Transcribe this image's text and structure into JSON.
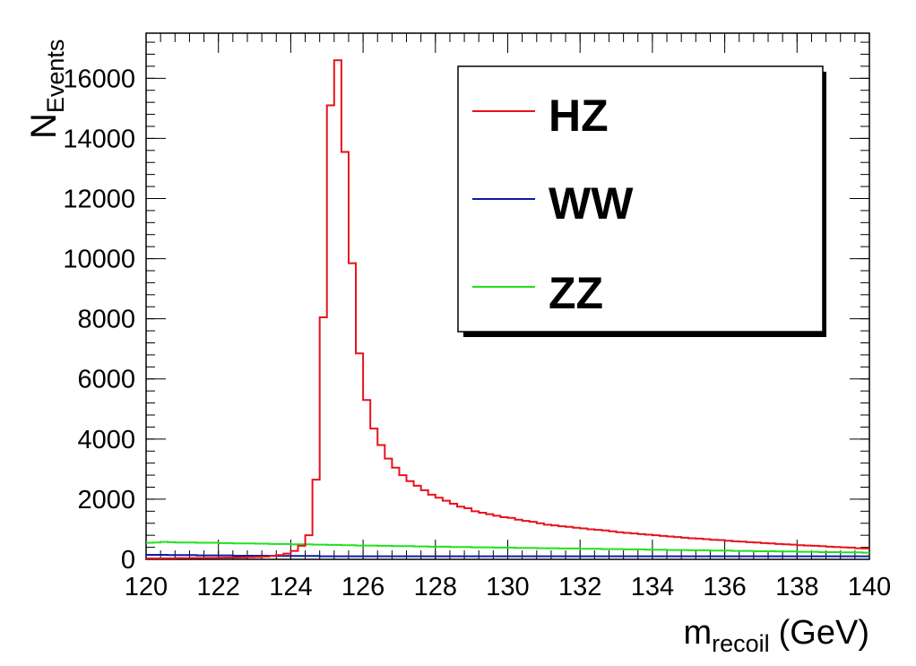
{
  "chart_data": {
    "type": "line",
    "style": "step-histogram",
    "title": "",
    "xlabel": {
      "main": "m",
      "sub": "recoil",
      "unit": "(GeV)"
    },
    "ylabel": {
      "main": "N",
      "sub": "Events"
    },
    "xlim": [
      120,
      140
    ],
    "ylim": [
      0,
      17500
    ],
    "x_ticks": [
      "120",
      "122",
      "124",
      "126",
      "128",
      "130",
      "132",
      "134",
      "136",
      "138",
      "140"
    ],
    "y_ticks": [
      "0",
      "2000",
      "4000",
      "6000",
      "8000",
      "10000",
      "12000",
      "14000",
      "16000"
    ],
    "bin_width": 0.2,
    "x": [
      120.1,
      120.3,
      120.5,
      120.7,
      120.9,
      121.1,
      121.3,
      121.5,
      121.7,
      121.9,
      122.1,
      122.3,
      122.5,
      122.7,
      122.9,
      123.1,
      123.3,
      123.5,
      123.7,
      123.9,
      124.1,
      124.3,
      124.5,
      124.7,
      124.9,
      125.1,
      125.3,
      125.5,
      125.7,
      125.9,
      126.1,
      126.3,
      126.5,
      126.7,
      126.9,
      127.1,
      127.3,
      127.5,
      127.7,
      127.9,
      128.1,
      128.3,
      128.5,
      128.7,
      128.9,
      129.1,
      129.3,
      129.5,
      129.7,
      129.9,
      130.1,
      130.3,
      130.5,
      130.7,
      130.9,
      131.1,
      131.3,
      131.5,
      131.7,
      131.9,
      132.1,
      132.3,
      132.5,
      132.7,
      132.9,
      133.1,
      133.3,
      133.5,
      133.7,
      133.9,
      134.1,
      134.3,
      134.5,
      134.7,
      134.9,
      135.1,
      135.3,
      135.5,
      135.7,
      135.9,
      136.1,
      136.3,
      136.5,
      136.7,
      136.9,
      137.1,
      137.3,
      137.5,
      137.7,
      137.9,
      138.1,
      138.3,
      138.5,
      138.7,
      138.9,
      139.1,
      139.3,
      139.5,
      139.7,
      139.9
    ],
    "series": [
      {
        "name": "HZ",
        "color": "#e8121b",
        "values": [
          30,
          30,
          35,
          35,
          40,
          40,
          45,
          45,
          50,
          50,
          55,
          60,
          60,
          65,
          70,
          80,
          90,
          110,
          140,
          190,
          280,
          450,
          800,
          2650,
          8050,
          15100,
          16600,
          13550,
          9850,
          6850,
          5300,
          4350,
          3800,
          3350,
          3050,
          2800,
          2600,
          2450,
          2300,
          2150,
          2050,
          1950,
          1850,
          1750,
          1700,
          1600,
          1550,
          1500,
          1450,
          1400,
          1380,
          1320,
          1280,
          1250,
          1200,
          1150,
          1130,
          1100,
          1080,
          1050,
          1030,
          1000,
          980,
          960,
          930,
          900,
          880,
          860,
          840,
          820,
          800,
          780,
          760,
          740,
          720,
          700,
          690,
          670,
          650,
          640,
          620,
          600,
          590,
          570,
          560,
          540,
          530,
          510,
          500,
          490,
          470,
          460,
          450,
          440,
          420,
          410,
          400,
          390,
          370,
          360
        ]
      },
      {
        "name": "WW",
        "color": "#0d1aa6",
        "values": [
          150,
          150,
          150,
          140,
          140,
          140,
          140,
          130,
          130,
          130,
          130,
          130,
          120,
          120,
          120,
          120,
          120,
          120,
          110,
          110,
          110,
          110,
          110,
          110,
          100,
          100,
          100,
          100,
          100,
          100,
          100,
          100,
          100,
          100,
          100,
          100,
          100,
          100,
          100,
          100,
          100,
          100,
          100,
          100,
          100,
          100,
          100,
          100,
          100,
          100,
          100,
          100,
          100,
          100,
          100,
          100,
          100,
          100,
          100,
          100,
          100,
          100,
          100,
          100,
          100,
          100,
          100,
          100,
          100,
          100,
          100,
          100,
          100,
          100,
          100,
          100,
          100,
          100,
          100,
          100,
          100,
          100,
          100,
          100,
          100,
          100,
          100,
          100,
          100,
          100,
          100,
          100,
          100,
          100,
          100,
          100,
          100,
          100,
          100,
          100
        ]
      },
      {
        "name": "ZZ",
        "color": "#20e020",
        "values": [
          550,
          560,
          580,
          570,
          560,
          560,
          560,
          550,
          550,
          550,
          540,
          540,
          530,
          530,
          530,
          520,
          520,
          510,
          510,
          510,
          500,
          500,
          500,
          490,
          490,
          480,
          480,
          470,
          470,
          460,
          460,
          460,
          450,
          450,
          440,
          440,
          440,
          430,
          430,
          420,
          420,
          420,
          410,
          410,
          410,
          400,
          400,
          400,
          390,
          390,
          390,
          380,
          380,
          380,
          370,
          370,
          370,
          360,
          360,
          360,
          350,
          350,
          350,
          340,
          340,
          340,
          330,
          330,
          330,
          320,
          320,
          320,
          310,
          310,
          310,
          300,
          300,
          300,
          290,
          290,
          290,
          280,
          280,
          280,
          270,
          270,
          270,
          260,
          260,
          260,
          250,
          250,
          250,
          240,
          240,
          240,
          230,
          230,
          230,
          220
        ]
      }
    ],
    "legend": {
      "position": "top-right",
      "entries": [
        "HZ",
        "WW",
        "ZZ"
      ]
    }
  }
}
